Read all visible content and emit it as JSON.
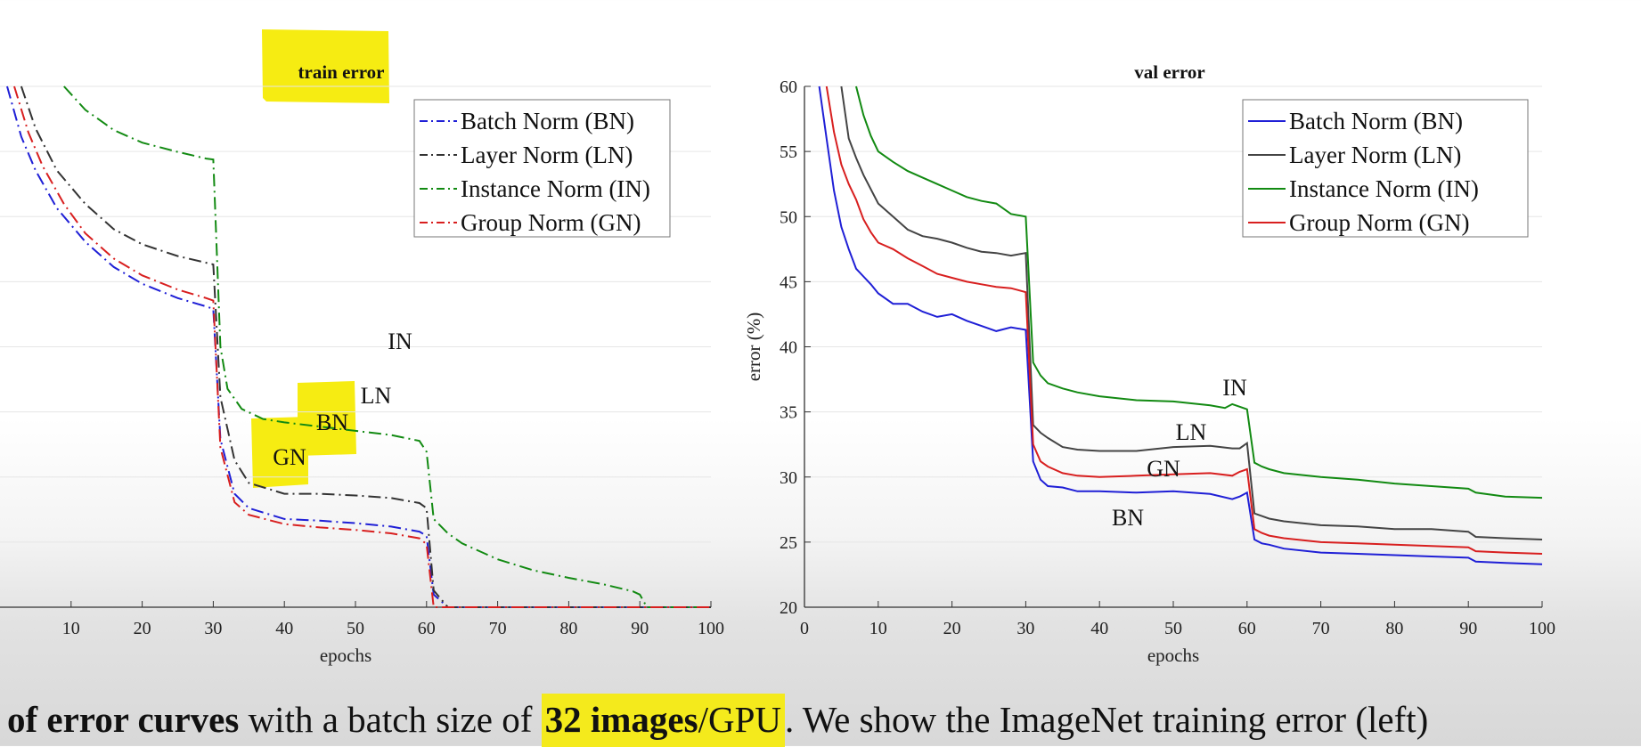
{
  "chart_data": [
    {
      "type": "line",
      "title": "train error",
      "xlabel": "epochs",
      "ylabel": "",
      "xlim": [
        0,
        100
      ],
      "xticks": [
        10,
        20,
        30,
        40,
        50,
        60,
        70,
        80,
        90,
        100
      ],
      "line_style": "dash-dot",
      "grid": true,
      "legend": "top-right",
      "series": [
        {
          "name": "Batch Norm (BN)",
          "color": "#1f1fd6",
          "x": [
            1,
            3,
            5,
            8,
            12,
            16,
            20,
            25,
            29,
            30,
            31,
            33,
            35,
            40,
            45,
            50,
            55,
            59,
            60,
            61,
            63,
            65,
            70,
            75,
            80,
            85,
            89,
            90,
            91,
            93,
            95,
            100
          ],
          "y": [
            76,
            70,
            66,
            61.5,
            57.5,
            54.5,
            52.5,
            50.8,
            49.8,
            49.5,
            34,
            27.5,
            25.8,
            24.5,
            24.3,
            24.0,
            23.6,
            23.0,
            22.5,
            15.5,
            13.0,
            12.0,
            10.8,
            9.9,
            9.0,
            8.2,
            7.4,
            7.2,
            5.4,
            5.0,
            4.9,
            4.9
          ]
        },
        {
          "name": "Layer Norm (LN)",
          "color": "#333333",
          "x": [
            3,
            5,
            8,
            12,
            16,
            20,
            25,
            29,
            30,
            31,
            33,
            35,
            40,
            45,
            50,
            55,
            59,
            60,
            61,
            63,
            65,
            70,
            75,
            80,
            85,
            89,
            90,
            91,
            93,
            95,
            100
          ],
          "y": [
            76,
            71,
            66,
            62,
            59,
            57.2,
            55.8,
            55.0,
            54.8,
            39,
            31.5,
            28.8,
            27.5,
            27.5,
            27.3,
            27.0,
            26.4,
            25.8,
            16,
            13.6,
            12.6,
            11.3,
            10.4,
            9.6,
            8.8,
            8.2,
            8.0,
            5.6,
            5.1,
            5.0,
            4.9
          ]
        },
        {
          "name": "Instance Norm (IN)",
          "color": "#128a12",
          "x": [
            9,
            12,
            16,
            20,
            25,
            29,
            30,
            31,
            32,
            34,
            37,
            40,
            45,
            50,
            55,
            59,
            60,
            61,
            63,
            65,
            70,
            75,
            80,
            85,
            89,
            90,
            91,
            93,
            95,
            100
          ],
          "y": [
            76,
            73.2,
            70.8,
            69.3,
            68.2,
            67.4,
            67.3,
            45,
            40,
            37.6,
            36.4,
            36,
            35.5,
            35.0,
            34.5,
            33.8,
            32.5,
            24.5,
            22.8,
            21.6,
            19.7,
            18.4,
            17.5,
            16.7,
            15.9,
            15.5,
            12.5,
            11.8,
            11.5,
            11.3
          ]
        },
        {
          "name": "Group Norm (GN)",
          "color": "#d81f1f",
          "x": [
            2,
            4,
            6,
            9,
            12,
            16,
            20,
            25,
            29,
            30,
            31,
            33,
            35,
            40,
            45,
            50,
            55,
            59,
            60,
            61,
            63,
            65,
            70,
            75,
            80,
            85,
            89,
            90,
            91,
            93,
            95,
            100
          ],
          "y": [
            76,
            70.5,
            66.5,
            62,
            58.5,
            55.5,
            53.5,
            51.8,
            50.8,
            50.5,
            33,
            26.5,
            25.0,
            23.9,
            23.5,
            23.2,
            22.8,
            22.2,
            21.5,
            13.5,
            11.2,
            10.0,
            8.7,
            7.8,
            7.0,
            6.3,
            5.6,
            5.4,
            3.4,
            3.0,
            2.8,
            2.7
          ]
        }
      ],
      "annotations": [
        "IN",
        "LN",
        "BN",
        "GN"
      ]
    },
    {
      "type": "line",
      "title": "val error",
      "xlabel": "epochs",
      "ylabel": "error (%)",
      "xlim": [
        0,
        100
      ],
      "ylim": [
        20,
        60
      ],
      "xticks": [
        0,
        10,
        20,
        30,
        40,
        50,
        60,
        70,
        80,
        90,
        100
      ],
      "yticks": [
        20,
        25,
        30,
        35,
        40,
        45,
        50,
        55,
        60
      ],
      "line_style": "solid",
      "grid": true,
      "legend": "top-right",
      "series": [
        {
          "name": "Batch Norm (BN)",
          "color": "#1f1fd6",
          "x": [
            2,
            3,
            4,
            5,
            6,
            7,
            8,
            9,
            10,
            12,
            14,
            16,
            18,
            20,
            22,
            24,
            26,
            28,
            30,
            31,
            32,
            33,
            35,
            37,
            40,
            45,
            50,
            55,
            58,
            59,
            60,
            61,
            62,
            63,
            65,
            70,
            75,
            80,
            85,
            90,
            91,
            95,
            100
          ],
          "y": [
            60,
            56,
            52,
            49.2,
            47.5,
            46,
            45.4,
            44.8,
            44.1,
            43.3,
            43.3,
            42.7,
            42.3,
            42.5,
            42,
            41.6,
            41.2,
            41.5,
            41.3,
            31.2,
            29.8,
            29.3,
            29.2,
            28.9,
            28.9,
            28.8,
            28.9,
            28.7,
            28.3,
            28.5,
            28.8,
            25.2,
            24.9,
            24.8,
            24.5,
            24.2,
            24.1,
            24,
            23.9,
            23.8,
            23.5,
            23.4,
            23.3
          ]
        },
        {
          "name": "Layer Norm (LN)",
          "color": "#444444",
          "x": [
            5,
            6,
            7,
            8,
            10,
            12,
            14,
            16,
            18,
            20,
            22,
            24,
            26,
            28,
            30,
            31,
            32,
            33,
            35,
            37,
            40,
            45,
            50,
            55,
            58,
            59,
            60,
            61,
            62,
            63,
            65,
            70,
            75,
            80,
            85,
            90,
            91,
            95,
            100
          ],
          "y": [
            60,
            56,
            54.5,
            53.2,
            51,
            50,
            49,
            48.5,
            48.3,
            48,
            47.6,
            47.3,
            47.2,
            47,
            47.2,
            34,
            33.4,
            33,
            32.3,
            32.1,
            32,
            32,
            32.3,
            32.4,
            32.2,
            32.2,
            32.6,
            27.2,
            27,
            26.8,
            26.6,
            26.3,
            26.2,
            26.0,
            26.0,
            25.8,
            25.4,
            25.3,
            25.2
          ]
        },
        {
          "name": "Instance Norm (IN)",
          "color": "#128a12",
          "x": [
            7,
            8,
            9,
            10,
            12,
            14,
            16,
            18,
            20,
            22,
            24,
            26,
            28,
            30,
            31,
            32,
            33,
            35,
            37,
            40,
            45,
            50,
            55,
            57,
            58,
            59,
            60,
            61,
            62,
            63,
            65,
            70,
            75,
            80,
            85,
            90,
            91,
            95,
            100
          ],
          "y": [
            60,
            57.8,
            56.2,
            55,
            54.2,
            53.5,
            53,
            52.5,
            52,
            51.5,
            51.2,
            51,
            50.2,
            50,
            38.8,
            37.8,
            37.2,
            36.8,
            36.5,
            36.2,
            35.9,
            35.8,
            35.5,
            35.3,
            35.6,
            35.4,
            35.2,
            31.1,
            30.8,
            30.6,
            30.3,
            30,
            29.8,
            29.5,
            29.3,
            29.1,
            28.8,
            28.5,
            28.4
          ]
        },
        {
          "name": "Group Norm (GN)",
          "color": "#d81f1f",
          "x": [
            3,
            4,
            5,
            6,
            7,
            8,
            9,
            10,
            12,
            14,
            16,
            18,
            20,
            22,
            24,
            26,
            28,
            30,
            31,
            32,
            33,
            35,
            37,
            40,
            45,
            50,
            55,
            58,
            59,
            60,
            61,
            62,
            63,
            65,
            70,
            75,
            80,
            85,
            90,
            91,
            95,
            100
          ],
          "y": [
            60,
            56.5,
            54,
            52.5,
            51.3,
            49.8,
            48.8,
            48,
            47.5,
            46.8,
            46.2,
            45.6,
            45.3,
            45,
            44.8,
            44.6,
            44.5,
            44.2,
            32.5,
            31.2,
            30.8,
            30.3,
            30.1,
            30.0,
            30.1,
            30.2,
            30.3,
            30.1,
            30.4,
            30.6,
            26,
            25.7,
            25.5,
            25.3,
            25,
            24.9,
            24.8,
            24.7,
            24.6,
            24.3,
            24.2,
            24.1
          ]
        }
      ],
      "annotations": [
        "IN",
        "LN",
        "GN",
        "BN"
      ]
    }
  ],
  "caption": {
    "part1_bold": "of error curves",
    "part2": " with a batch size of ",
    "part3_bold": "32 images",
    "part4": "/GPU",
    "part5": ". We show the ImageNet training error (left)"
  }
}
